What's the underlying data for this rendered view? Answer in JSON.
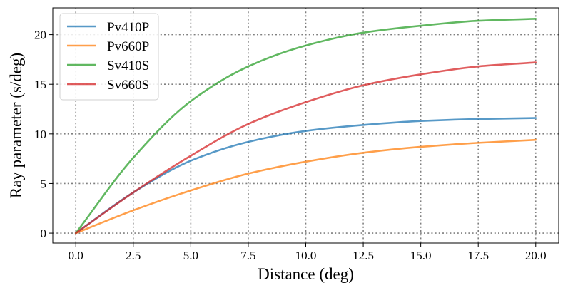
{
  "chart_data": {
    "type": "line",
    "title": "",
    "xlabel": "Distance (deg)",
    "ylabel": "Ray parameter (s/deg)",
    "xlim": [
      -1.0,
      21.0
    ],
    "ylim": [
      -1.0,
      22.7
    ],
    "xticks": [
      0.0,
      2.5,
      5.0,
      7.5,
      10.0,
      12.5,
      15.0,
      17.5,
      20.0
    ],
    "xtick_labels": [
      "0.0",
      "2.5",
      "5.0",
      "7.5",
      "10.0",
      "12.5",
      "15.0",
      "17.5",
      "20.0"
    ],
    "yticks": [
      0,
      5,
      10,
      15,
      20
    ],
    "ytick_labels": [
      "0",
      "5",
      "10",
      "15",
      "20"
    ],
    "grid": true,
    "legend_position": "top-left",
    "x": [
      0,
      2.5,
      5,
      7.5,
      10,
      12.5,
      15,
      17.5,
      20
    ],
    "series": [
      {
        "name": "Pv410P",
        "color": "#1f77b4",
        "values": [
          0,
          4.1,
          7.3,
          9.2,
          10.3,
          10.9,
          11.3,
          11.5,
          11.6
        ]
      },
      {
        "name": "Pv660P",
        "color": "#ff7f0e",
        "values": [
          0,
          2.3,
          4.3,
          6.0,
          7.2,
          8.1,
          8.7,
          9.1,
          9.4
        ]
      },
      {
        "name": "Sv410S",
        "color": "#2ca02c",
        "values": [
          0,
          7.6,
          13.3,
          16.8,
          18.9,
          20.2,
          20.9,
          21.4,
          21.6
        ]
      },
      {
        "name": "Sv660S",
        "color": "#d62728",
        "values": [
          0,
          4.1,
          7.8,
          11.0,
          13.2,
          14.9,
          16.0,
          16.8,
          17.2
        ]
      }
    ]
  }
}
